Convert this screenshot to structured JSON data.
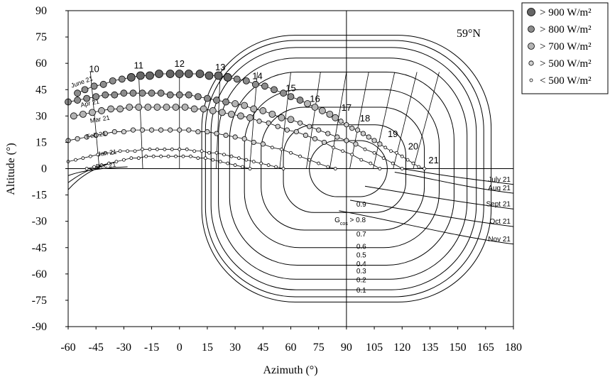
{
  "chart_data": {
    "type": "scatter",
    "title": "59°N",
    "xlabel": "Azimuth (°)",
    "ylabel": "Altitude (°)",
    "xlim": [
      -60,
      180
    ],
    "ylim": [
      -90,
      90
    ],
    "x_ticks": [
      "-60",
      "-45",
      "-30",
      "-15",
      "0",
      "15",
      "30",
      "45",
      "60",
      "75",
      "90",
      "105",
      "120",
      "135",
      "150",
      "165",
      "180"
    ],
    "y_ticks": [
      "90",
      "75",
      "60",
      "45",
      "30",
      "15",
      "0",
      "-15",
      "-30",
      "-45",
      "-60",
      "-75",
      "-90"
    ],
    "legend": {
      "placement": "outside-top-right",
      "entries": [
        {
          "label": "> 900 W/m²",
          "fill": "#666666",
          "size": "large"
        },
        {
          "label": "> 800 W/m²",
          "fill": "#8c8c8c",
          "size": "medium"
        },
        {
          "label": "> 700 W/m²",
          "fill": "#b4b4b4",
          "size": "medium"
        },
        {
          "label": "> 500 W/m²",
          "fill": "#cfcfcf",
          "size": "small"
        },
        {
          "label": "< 500 W/m²",
          "fill": "#ffffff",
          "size": "tiny"
        }
      ]
    },
    "sun_paths": [
      {
        "name": "June 21",
        "points": [
          [
            -55,
            43
          ],
          [
            -51,
            45
          ],
          [
            -46,
            47
          ],
          [
            -41,
            48
          ],
          [
            -36,
            50
          ],
          [
            -31,
            51
          ],
          [
            -26,
            52
          ],
          [
            -21,
            53
          ],
          [
            -16,
            53
          ],
          [
            -11,
            54
          ],
          [
            -5,
            54
          ],
          [
            0,
            54
          ],
          [
            5,
            54
          ],
          [
            11,
            54
          ],
          [
            16,
            53
          ],
          [
            21,
            53
          ],
          [
            26,
            52
          ],
          [
            31,
            51
          ],
          [
            36,
            50
          ],
          [
            41,
            48
          ],
          [
            46,
            47
          ],
          [
            51,
            45
          ],
          [
            56,
            43
          ],
          [
            60,
            41
          ],
          [
            65,
            39
          ],
          [
            69,
            37
          ],
          [
            73,
            35
          ],
          [
            77,
            33
          ],
          [
            81,
            31
          ],
          [
            84,
            29
          ],
          [
            87,
            27
          ],
          [
            90,
            25
          ],
          [
            93,
            23
          ],
          [
            96,
            22
          ],
          [
            99,
            20
          ],
          [
            102,
            18
          ],
          [
            105,
            16
          ],
          [
            108,
            14
          ],
          [
            111,
            12
          ],
          [
            114,
            10
          ],
          [
            117,
            9
          ],
          [
            120,
            7
          ],
          [
            123,
            5
          ],
          [
            126,
            3
          ],
          [
            129,
            1
          ],
          [
            132,
            0
          ]
        ]
      },
      {
        "name": "Apr 21",
        "points": [
          [
            -60,
            38
          ],
          [
            -55,
            39
          ],
          [
            -50,
            40
          ],
          [
            -45,
            41
          ],
          [
            -40,
            42
          ],
          [
            -35,
            42
          ],
          [
            -30,
            43
          ],
          [
            -25,
            43
          ],
          [
            -20,
            43
          ],
          [
            -15,
            43
          ],
          [
            -10,
            43
          ],
          [
            -5,
            42
          ],
          [
            0,
            42
          ],
          [
            5,
            42
          ],
          [
            10,
            41
          ],
          [
            15,
            40
          ],
          [
            20,
            39
          ],
          [
            25,
            38
          ],
          [
            30,
            37
          ],
          [
            35,
            36
          ],
          [
            40,
            34
          ],
          [
            45,
            33
          ],
          [
            50,
            31
          ],
          [
            55,
            29
          ],
          [
            60,
            28
          ],
          [
            65,
            26
          ],
          [
            70,
            24
          ],
          [
            75,
            22
          ],
          [
            80,
            20
          ],
          [
            85,
            18
          ],
          [
            90,
            16
          ],
          [
            95,
            14
          ],
          [
            100,
            11
          ],
          [
            105,
            9
          ],
          [
            110,
            6
          ],
          [
            115,
            3
          ],
          [
            120,
            0
          ]
        ]
      },
      {
        "name": "Mar 21",
        "points": [
          [
            -57,
            30
          ],
          [
            -52,
            31
          ],
          [
            -47,
            32
          ],
          [
            -42,
            33
          ],
          [
            -37,
            34
          ],
          [
            -32,
            34
          ],
          [
            -27,
            35
          ],
          [
            -22,
            35
          ],
          [
            -17,
            35
          ],
          [
            -12,
            35
          ],
          [
            -7,
            35
          ],
          [
            -2,
            35
          ],
          [
            3,
            35
          ],
          [
            8,
            34
          ],
          [
            13,
            34
          ],
          [
            18,
            33
          ],
          [
            23,
            32
          ],
          [
            28,
            31
          ],
          [
            33,
            30
          ],
          [
            38,
            29
          ],
          [
            43,
            27
          ],
          [
            48,
            26
          ],
          [
            53,
            24
          ],
          [
            58,
            22
          ],
          [
            63,
            21
          ],
          [
            68,
            19
          ],
          [
            73,
            17
          ],
          [
            78,
            15
          ],
          [
            83,
            12
          ],
          [
            88,
            10
          ],
          [
            93,
            8
          ],
          [
            98,
            5
          ],
          [
            103,
            3
          ],
          [
            108,
            0
          ]
        ]
      },
      {
        "name": "Feb 21",
        "points": [
          [
            -60,
            16
          ],
          [
            -55,
            17
          ],
          [
            -50,
            18
          ],
          [
            -45,
            19
          ],
          [
            -40,
            20
          ],
          [
            -35,
            21
          ],
          [
            -30,
            21
          ],
          [
            -25,
            22
          ],
          [
            -20,
            22
          ],
          [
            -15,
            22
          ],
          [
            -10,
            22
          ],
          [
            -5,
            22
          ],
          [
            0,
            22
          ],
          [
            5,
            22
          ],
          [
            10,
            21
          ],
          [
            15,
            21
          ],
          [
            20,
            20
          ],
          [
            25,
            19
          ],
          [
            30,
            18
          ],
          [
            35,
            17
          ],
          [
            40,
            15
          ],
          [
            45,
            14
          ],
          [
            50,
            12
          ],
          [
            55,
            11
          ],
          [
            60,
            9
          ],
          [
            65,
            7
          ],
          [
            70,
            5
          ],
          [
            75,
            3
          ],
          [
            80,
            1
          ],
          [
            84,
            0
          ]
        ]
      },
      {
        "name": "Jan 21",
        "points": [
          [
            -60,
            4
          ],
          [
            -56,
            5
          ],
          [
            -52,
            6
          ],
          [
            -48,
            7
          ],
          [
            -44,
            8
          ],
          [
            -40,
            9
          ],
          [
            -36,
            9
          ],
          [
            -32,
            10
          ],
          [
            -28,
            10
          ],
          [
            -24,
            10
          ],
          [
            -20,
            11
          ],
          [
            -16,
            11
          ],
          [
            -12,
            11
          ],
          [
            -8,
            11
          ],
          [
            -4,
            11
          ],
          [
            0,
            11
          ],
          [
            4,
            11
          ],
          [
            8,
            10
          ],
          [
            12,
            10
          ],
          [
            16,
            9
          ],
          [
            20,
            9
          ],
          [
            24,
            8
          ],
          [
            28,
            7
          ],
          [
            32,
            6
          ],
          [
            36,
            5
          ],
          [
            40,
            4
          ],
          [
            44,
            3
          ],
          [
            48,
            2
          ],
          [
            52,
            1
          ],
          [
            56,
            0
          ]
        ]
      },
      {
        "name": "Dec 21",
        "points": [
          [
            -50,
            0
          ],
          [
            -46,
            1
          ],
          [
            -42,
            2
          ],
          [
            -38,
            3
          ],
          [
            -34,
            4
          ],
          [
            -30,
            5
          ],
          [
            -26,
            6
          ],
          [
            -22,
            6
          ],
          [
            -18,
            7
          ],
          [
            -14,
            7
          ],
          [
            -10,
            7
          ],
          [
            -6,
            7
          ],
          [
            -2,
            7
          ],
          [
            2,
            7
          ],
          [
            6,
            7
          ],
          [
            10,
            6
          ],
          [
            14,
            6
          ],
          [
            18,
            5
          ],
          [
            22,
            4
          ],
          [
            26,
            3
          ],
          [
            30,
            2
          ],
          [
            34,
            1
          ],
          [
            38,
            0
          ]
        ]
      }
    ],
    "hour_labels": [
      "10",
      "11",
      "12",
      "13",
      "14",
      "15",
      "16",
      "17",
      "18",
      "19",
      "20",
      "21"
    ],
    "month_labels": [
      "June 21",
      "Apr 21",
      "Mar 21",
      "Feb 21",
      "Jan 21",
      "Dec 21",
      "July 21",
      "Aug 21",
      "Sept 21",
      "Oct 21",
      "Nov 21"
    ],
    "gcos_labels": [
      "0.9",
      "0.8",
      "0.7",
      "0.6",
      "0.5",
      "0.4",
      "0.3",
      "0.2",
      "0.1"
    ],
    "gcos_prefix": "G",
    "gcos_subscript": "cos",
    "gcos_operator": " > ",
    "reference_line_x": 90,
    "reference_line_y": 0
  }
}
